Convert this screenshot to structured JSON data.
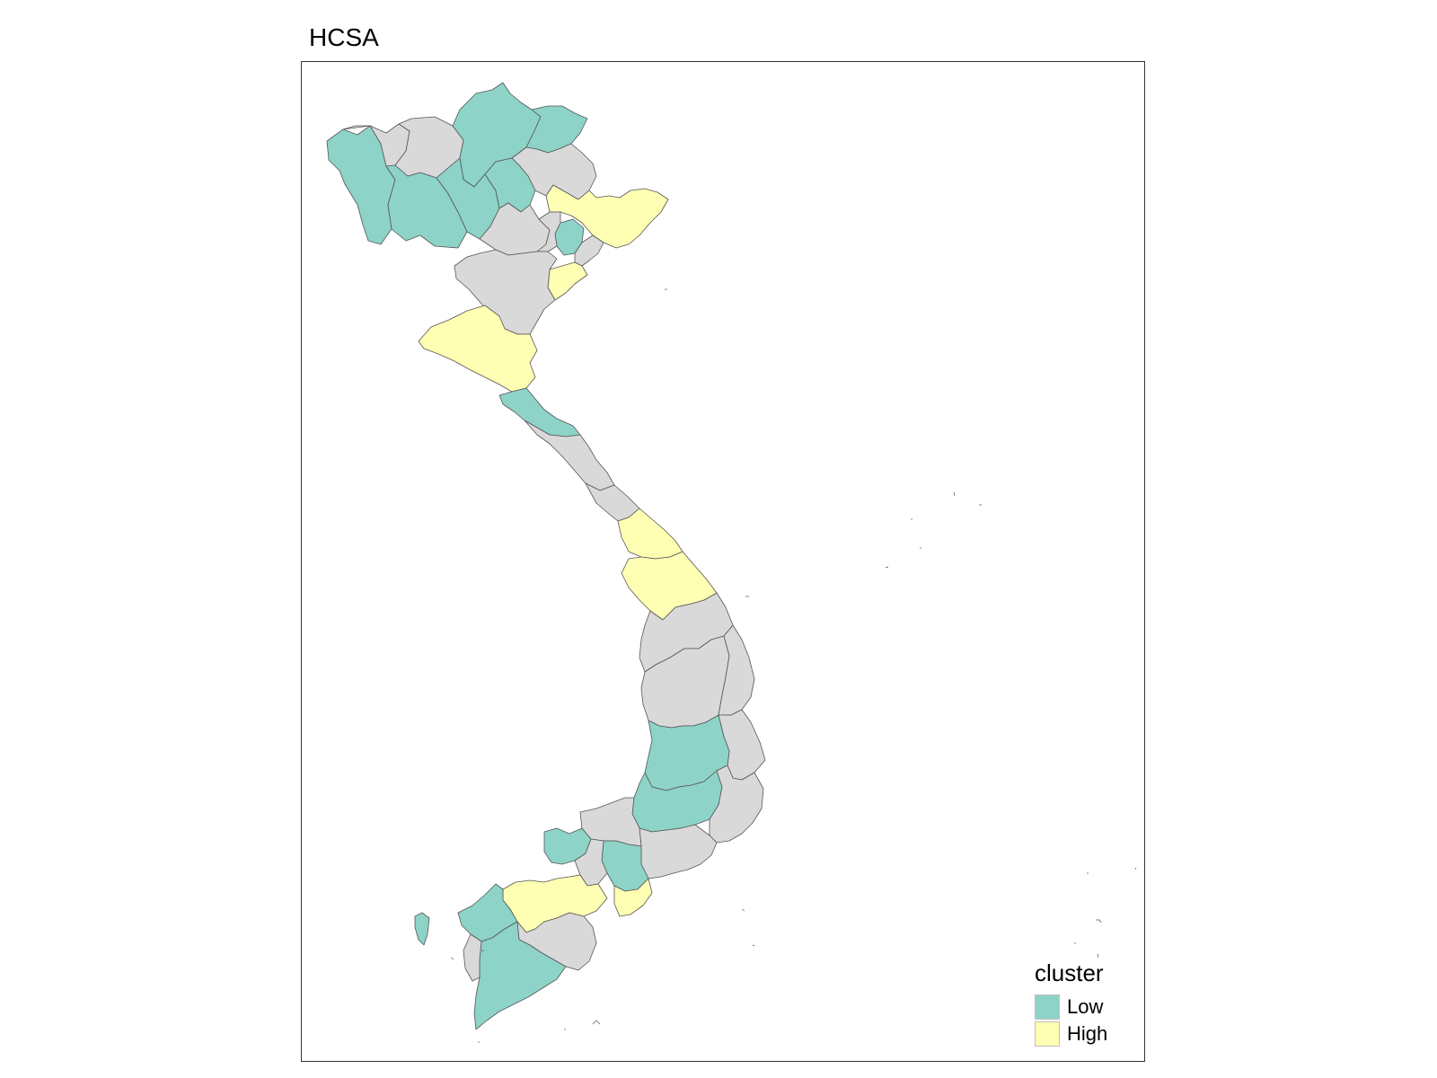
{
  "title": "HCSA",
  "legend": {
    "title": "cluster",
    "items": [
      {
        "label": "Low",
        "color": "#8dd3c7"
      },
      {
        "label": "High",
        "color": "#ffffb3"
      }
    ]
  },
  "colors": {
    "low": "#8dd3c7",
    "high": "#ffffb3",
    "insignificant": "#d9d9d9",
    "border": "#555555"
  }
}
